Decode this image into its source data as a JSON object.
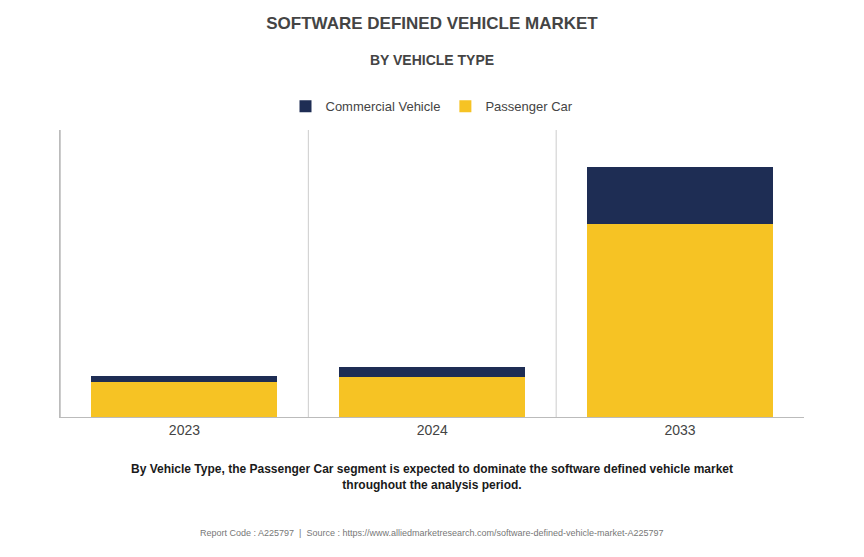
{
  "chart_data": {
    "type": "bar",
    "stacked": true,
    "title": "SOFTWARE DEFINED VEHICLE MARKET",
    "subtitle": "BY VEHICLE TYPE",
    "categories": [
      "2023",
      "2024",
      "2033"
    ],
    "series": [
      {
        "name": "Passenger Car",
        "color": "#F6C324",
        "values": [
          28,
          32,
          155
        ]
      },
      {
        "name": "Commercial Vehicle",
        "color": "#1E2D54",
        "values": [
          5,
          8,
          45
        ]
      }
    ],
    "ylim": [
      0,
      230
    ],
    "tick_labels": "x",
    "grid": false,
    "legend": "top",
    "annotations": [
      "By Vehicle Type, the Passenger Car segment is expected to dominate the software defined vehicle market\nthroughout the analysis period.",
      "Report Code : A225797  |  Source : https://www.alliedmarketresearch.com/software-defined-vehicle-market-A225797"
    ]
  }
}
